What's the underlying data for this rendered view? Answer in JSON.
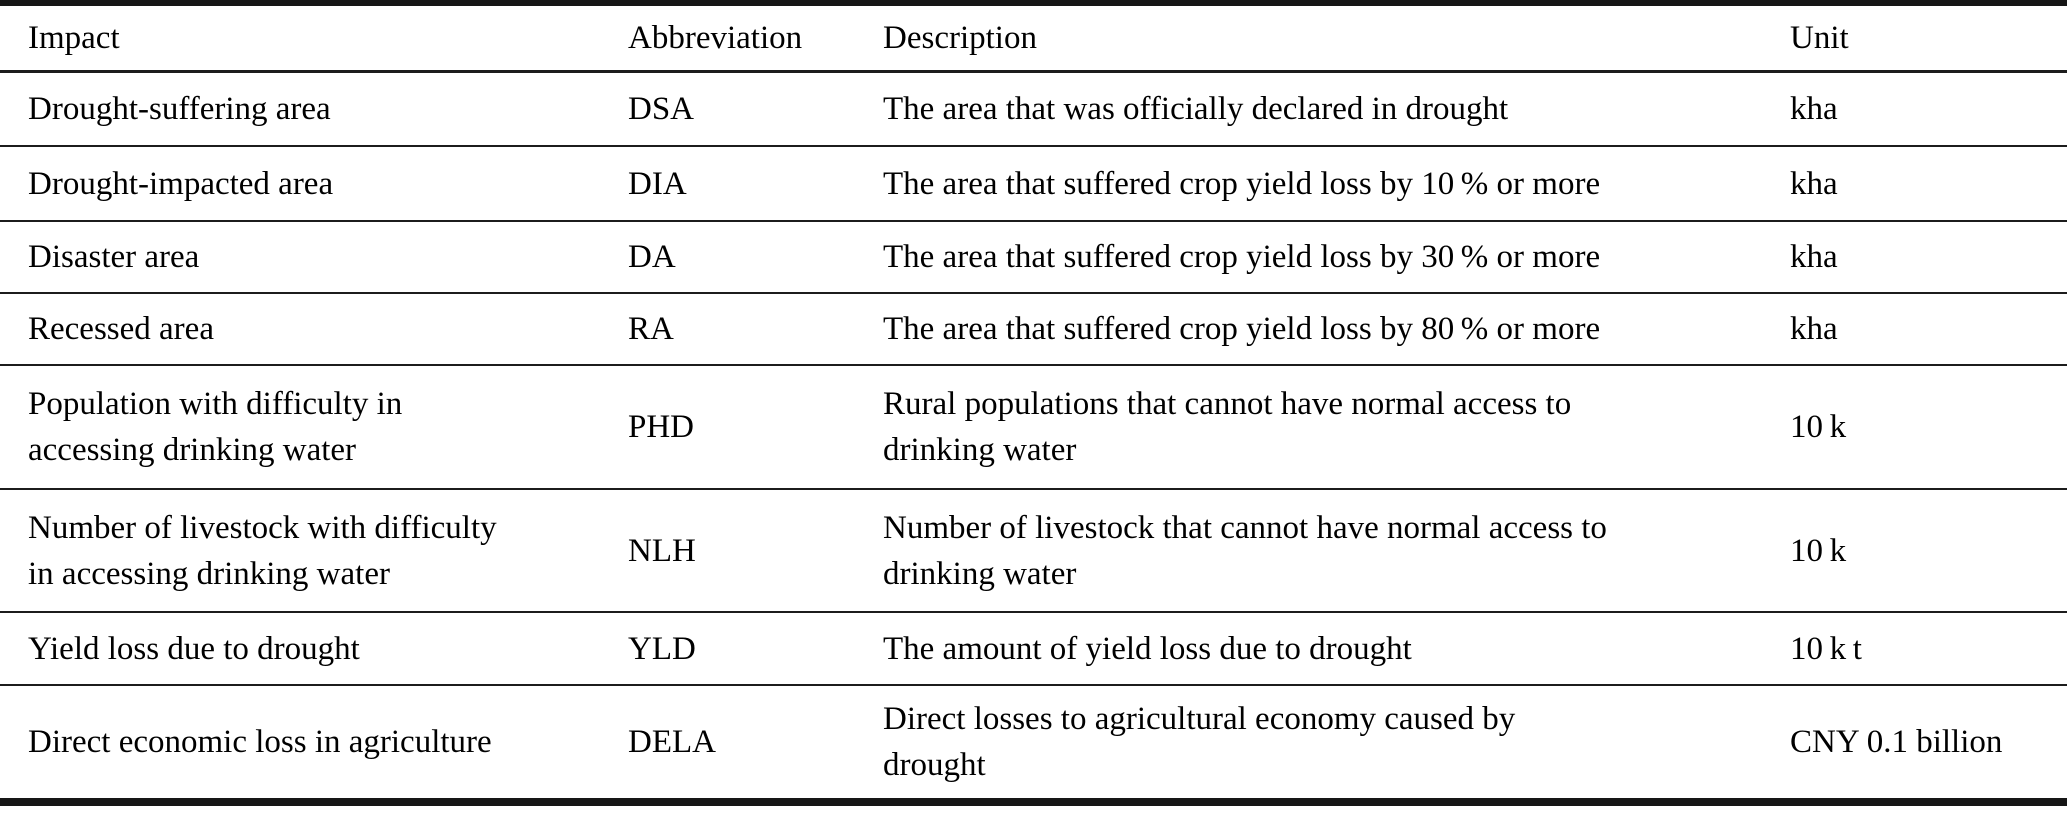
{
  "colors": {
    "background": "#ffffff",
    "text": "#000000",
    "rule": "#1c1c1c"
  },
  "table": {
    "columns": [
      "Impact",
      "Abbreviation",
      "Description",
      "Unit"
    ],
    "rows": [
      {
        "impact": "Drought-suffering area",
        "abbreviation": "DSA",
        "description": "The area that was officially declared in drought",
        "unit": "kha"
      },
      {
        "impact": "Drought-impacted area",
        "abbreviation": "DIA",
        "description": "The area that suffered crop yield loss by 10 % or more",
        "unit": "kha"
      },
      {
        "impact": "Disaster area",
        "abbreviation": "DA",
        "description": "The area that suffered crop yield loss by 30 % or more",
        "unit": "kha"
      },
      {
        "impact": "Recessed area",
        "abbreviation": "RA",
        "description": "The area that suffered crop yield loss by 80 % or more",
        "unit": "kha"
      },
      {
        "impact": "Population with difficulty in\naccessing drinking water",
        "abbreviation": "PHD",
        "description": "Rural populations that cannot have normal access to\ndrinking water",
        "unit": "10 k"
      },
      {
        "impact": "Number of livestock with difficulty\nin accessing drinking water",
        "abbreviation": "NLH",
        "description": "Number of livestock that cannot have normal access to\ndrinking water",
        "unit": "10 k"
      },
      {
        "impact": "Yield loss due to drought",
        "abbreviation": "YLD",
        "description": "The amount of yield loss due to drought",
        "unit": "10 k t"
      },
      {
        "impact": "Direct economic loss in agriculture",
        "abbreviation": "DELA",
        "description": "Direct losses to agricultural economy caused by\ndrought",
        "unit": "CNY 0.1 billion"
      }
    ]
  }
}
